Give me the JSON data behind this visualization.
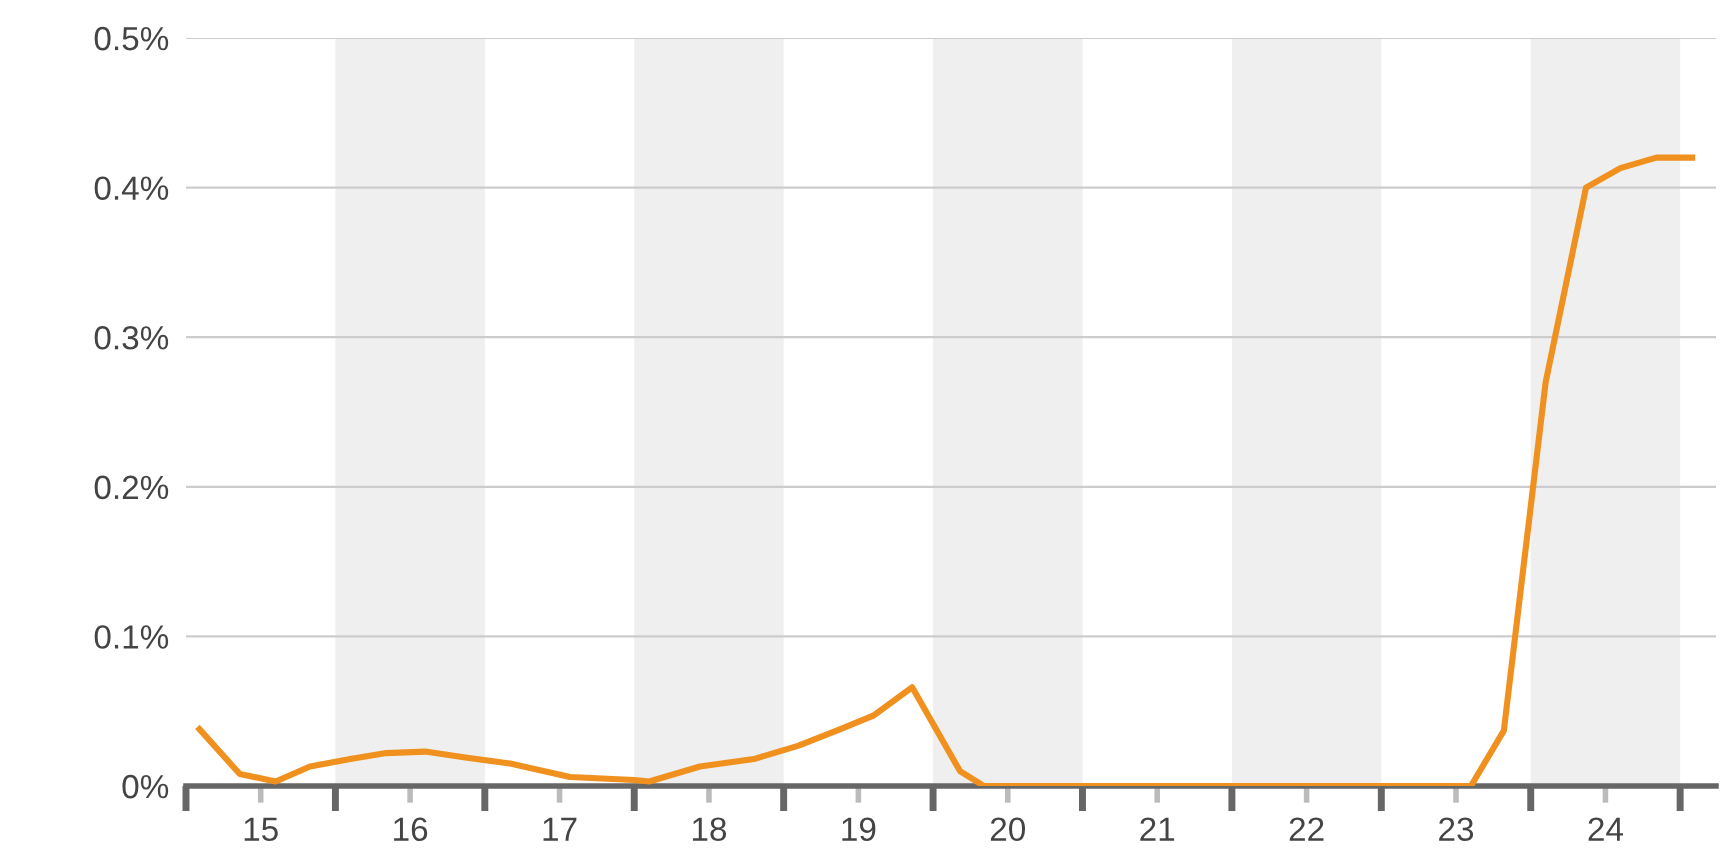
{
  "chart_data": {
    "type": "line",
    "series": [
      {
        "color": "#f0901e",
        "x": [
          15.09,
          15.36,
          15.6,
          15.83,
          16.1,
          16.34,
          16.6,
          16.87,
          17.17,
          17.57,
          18.0,
          18.1,
          18.44,
          18.8,
          19.1,
          19.38,
          19.6,
          19.86,
          20.18,
          20.34,
          21.0,
          22.0,
          23.0,
          23.6,
          23.82,
          24.1,
          24.37,
          24.6,
          24.84,
          25.08
        ],
        "values": [
          0.038,
          0.008,
          0.003,
          0.013,
          0.018,
          0.022,
          0.023,
          0.019,
          0.015,
          0.006,
          0.004,
          0.003,
          0.013,
          0.018,
          0.027,
          0.038,
          0.047,
          0.066,
          0.01,
          0.0,
          0.0,
          0.0,
          0.0,
          0.0,
          0.037,
          0.27,
          0.4,
          0.413,
          0.42,
          0.42
        ]
      }
    ],
    "xlim": [
      15,
      25.24
    ],
    "xticks": [
      {
        "value": 15,
        "label": null
      },
      {
        "value": 15.5,
        "label": "15"
      },
      {
        "value": 16,
        "label": null
      },
      {
        "value": 16.5,
        "label": "16"
      },
      {
        "value": 17,
        "label": null
      },
      {
        "value": 17.5,
        "label": "17"
      },
      {
        "value": 18,
        "label": null
      },
      {
        "value": 18.5,
        "label": "18"
      },
      {
        "value": 19,
        "label": null
      },
      {
        "value": 19.5,
        "label": "19"
      },
      {
        "value": 20,
        "label": null
      },
      {
        "value": 20.5,
        "label": "20"
      },
      {
        "value": 21,
        "label": null
      },
      {
        "value": 21.5,
        "label": "21"
      },
      {
        "value": 22,
        "label": null
      },
      {
        "value": 22.5,
        "label": "22"
      },
      {
        "value": 23,
        "label": null
      },
      {
        "value": 23.5,
        "label": "23"
      },
      {
        "value": 24,
        "label": null
      },
      {
        "value": 24.5,
        "label": "24"
      },
      {
        "value": 25,
        "label": null
      }
    ],
    "ylim": [
      0,
      0.5
    ],
    "yticks": [
      {
        "value": 0,
        "label": "0%"
      },
      {
        "value": 0.1,
        "label": "0.1%"
      },
      {
        "value": 0.2,
        "label": "0.2%"
      },
      {
        "value": 0.3,
        "label": "0.3%"
      },
      {
        "value": 0.4,
        "label": "0.4%"
      },
      {
        "value": 0.5,
        "label": "0.5%"
      }
    ],
    "grid": "y",
    "bands": [
      {
        "axis": "x",
        "from": 16,
        "to": 17,
        "color": "#efefef"
      },
      {
        "axis": "x",
        "from": 18,
        "to": 19,
        "color": "#efefef"
      },
      {
        "axis": "x",
        "from": 20,
        "to": 21,
        "color": "#efefef"
      },
      {
        "axis": "x",
        "from": 22,
        "to": 23,
        "color": "#efefef"
      },
      {
        "axis": "x",
        "from": 24,
        "to": 25,
        "color": "#efefef"
      }
    ]
  }
}
